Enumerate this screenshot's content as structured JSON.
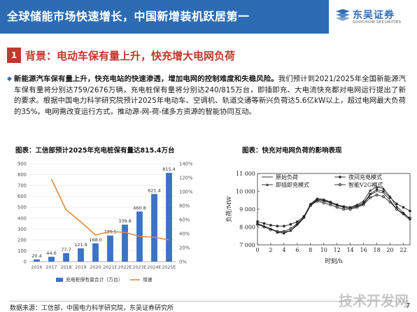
{
  "header": {
    "title": "全球储能市场快速增长，中国新增装机跃居第一",
    "logo_name": "东吴证券",
    "logo_sub": "SOOCHOW SECURITIES",
    "colors": {
      "banner": "#2d6cb3",
      "accent": "#c0392b"
    }
  },
  "section": {
    "number": "1",
    "title": "背景：电动车保有量上升，快充增大电网负荷"
  },
  "paragraph": {
    "bold": "新能源汽车保有量上升，快充电站的快速渗透，增加电网的控制难度和失稳风险。",
    "rest": "我们预计到2021/2025年全国新能源汽车保有量将分别达759/2676万辆，充电桩保有量将分别达240/815万台，即插即充、大电流快充都对电网运行提出了新的要求。根据中国电力科学研究院预计2025年电动车、空调机、轨道交通等新兴负荷达5.6亿kW以上，超过电网最大负荷的35%。电网需改变运行方式，推动源-网-荷-储多方资源的智能协同互动。"
  },
  "chart_captions": {
    "left": "图表：工信部预计2025年充电桩保有量达815.4万台",
    "right": "图表：快充对电网负荷的影响表现"
  },
  "chart_data": [
    {
      "type": "bar",
      "categories": [
        "2016",
        "2017",
        "2018",
        "2019",
        "2020",
        "2021E",
        "2022E",
        "2023E",
        "2024E",
        "2025E"
      ],
      "series": [
        {
          "name": "充电桩保有量合计（万台）",
          "axis": "left",
          "values": [
            20.4,
            44.6,
            77.7,
            121.9,
            168.0,
            239.5,
            339.8,
            460.8,
            621.4,
            815.4
          ],
          "color": "#3b73c6"
        },
        {
          "name": "增速",
          "type": "line",
          "axis": "right",
          "values": [
            null,
            118,
            74,
            57,
            38,
            43,
            42,
            36,
            35,
            31
          ],
          "color": "#e08a3a"
        }
      ],
      "ylim": [
        0,
        900
      ],
      "yticks": [
        0,
        100,
        200,
        300,
        400,
        500,
        600,
        700,
        800,
        900
      ],
      "y2lim": [
        0,
        140
      ],
      "y2ticks": [
        "0%",
        "20%",
        "40%",
        "60%",
        "80%",
        "100%",
        "120%",
        "140%"
      ],
      "data_labels": [
        "20.4",
        "44.6",
        "77.7",
        "121.9",
        "168.0",
        "239.5",
        "339.8",
        "460.8",
        "621.4",
        "815.4"
      ],
      "legend": "bottom"
    },
    {
      "type": "line",
      "x": [
        0,
        1,
        2,
        3,
        4,
        5,
        6,
        7,
        8,
        9,
        10,
        11,
        12,
        13,
        14,
        15,
        16,
        17,
        18,
        19,
        20,
        21,
        22,
        23
      ],
      "xticks": [
        "0",
        "2",
        "4",
        "6",
        "8",
        "10",
        "12",
        "14",
        "16",
        "18",
        "20",
        "22"
      ],
      "xlabel": "时刻/h",
      "ylabel": "负荷/MW",
      "ylim": [
        7000,
        11000
      ],
      "yticks": [
        "7 000",
        "8 000",
        "9 000",
        "10 000",
        "11 000"
      ],
      "series": [
        {
          "name": "原始负荷",
          "marker": "none",
          "values": [
            8200,
            8050,
            7900,
            7750,
            7700,
            7800,
            8100,
            8500,
            9200,
            9500,
            9450,
            9350,
            9200,
            9100,
            9050,
            9150,
            9300,
            9800,
            10000,
            9900,
            9500,
            9000,
            8700,
            8400
          ]
        },
        {
          "name": "夜间充电模式",
          "marker": "square",
          "values": [
            8300,
            8200,
            8100,
            8050,
            8050,
            8150,
            8300,
            8600,
            9250,
            9550,
            9500,
            9400,
            9250,
            9150,
            9100,
            9200,
            9350,
            9850,
            10100,
            10000,
            9650,
            9300,
            9100,
            8900
          ]
        },
        {
          "name": "即插即充模式",
          "marker": "triangle",
          "values": [
            8200,
            8050,
            7900,
            7700,
            7650,
            7800,
            8150,
            8550,
            9300,
            9600,
            9550,
            9400,
            9250,
            9150,
            9100,
            9250,
            9450,
            10050,
            10250,
            10150,
            9700,
            9150,
            8800,
            8450
          ]
        },
        {
          "name": "智能V2G模式",
          "marker": "circle",
          "values": [
            8150,
            8000,
            7850,
            7750,
            7750,
            7900,
            8200,
            8550,
            9200,
            9450,
            9350,
            9250,
            9100,
            9000,
            9000,
            9100,
            9250,
            9650,
            9800,
            9700,
            9400,
            9000,
            8750,
            8500
          ]
        }
      ],
      "legend": "top"
    }
  ],
  "footer": {
    "source": "数据来源：工信部，中国电力科学研究院，东吴证券研究所",
    "page": "7",
    "watermark": "技术开发网"
  }
}
